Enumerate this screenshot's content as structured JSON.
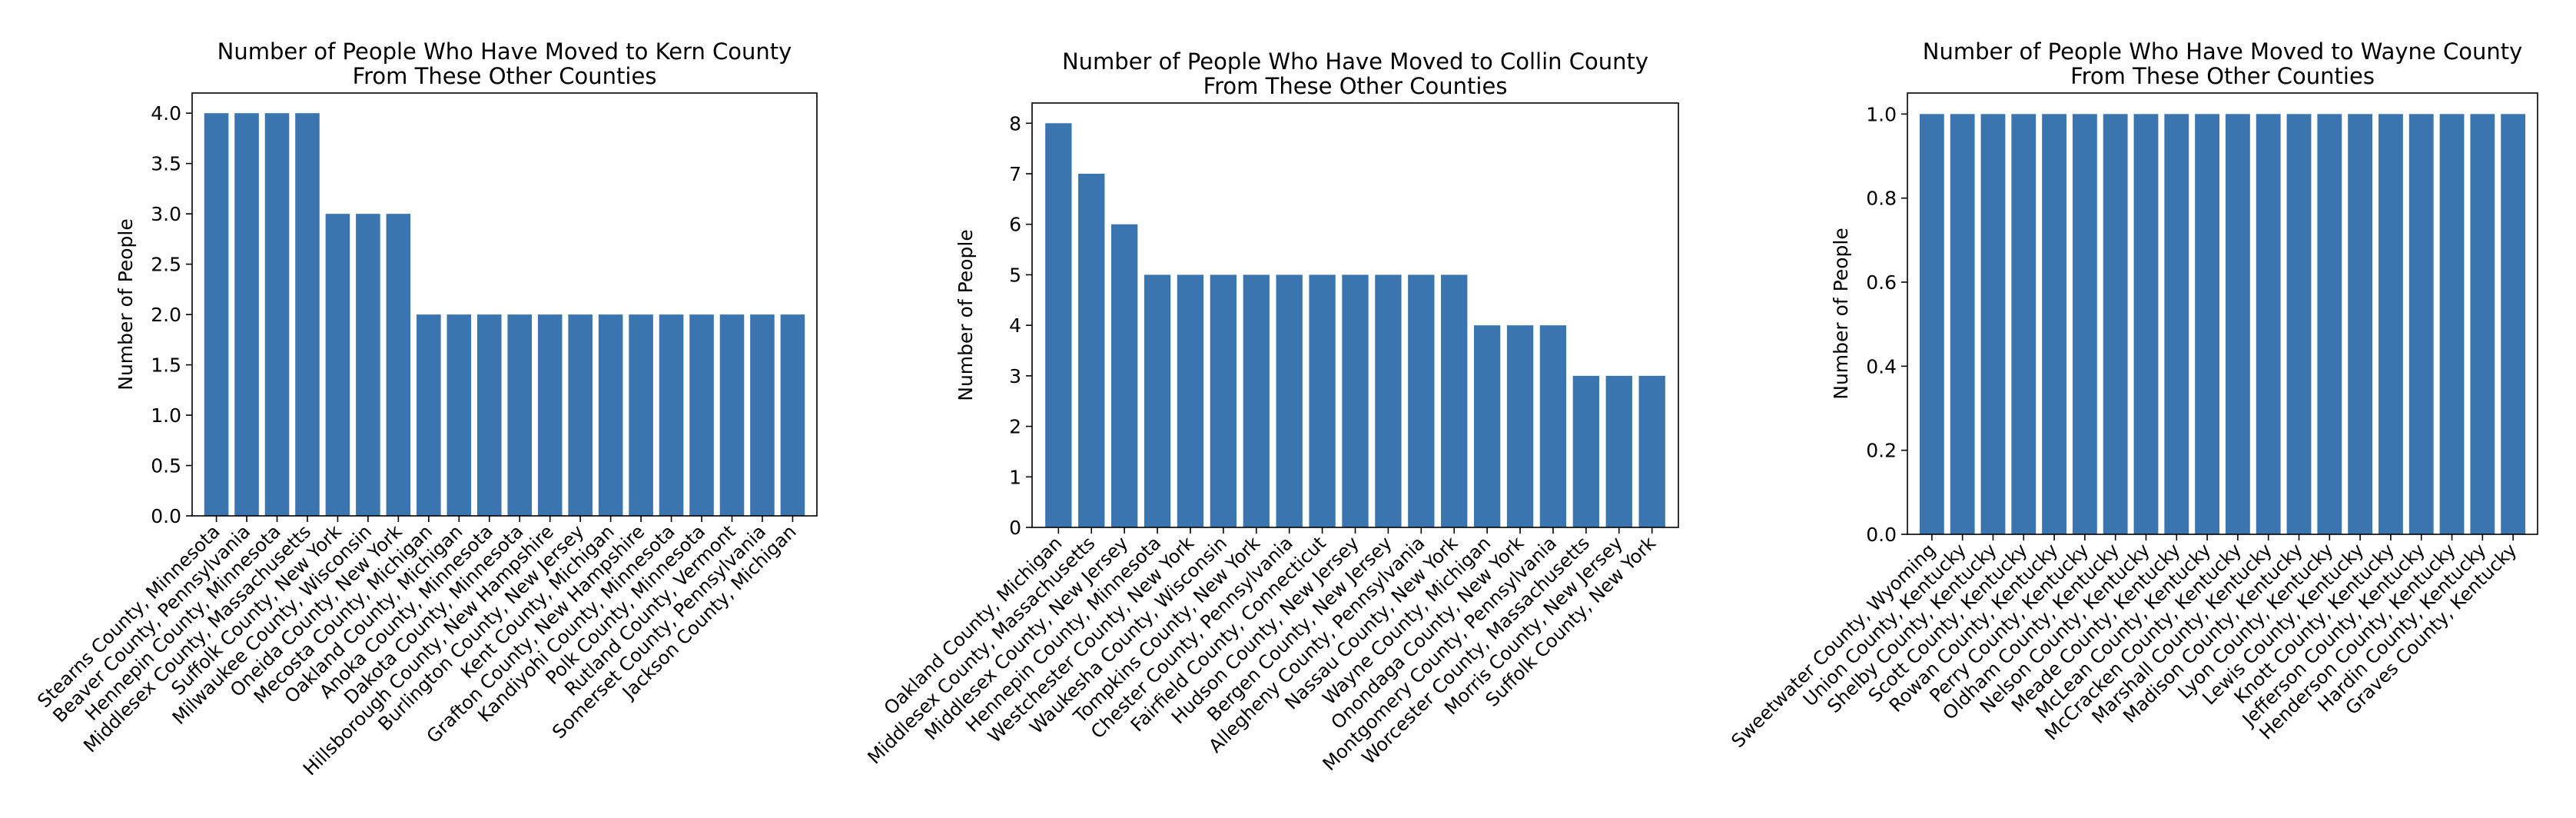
{
  "chart_data": [
    {
      "type": "bar",
      "title": "Number of People Who Have Moved to Kern County\nFrom These Other Counties",
      "xlabel": "",
      "ylabel": "Number of People",
      "ylim": [
        0,
        4.2
      ],
      "yticks": [
        "0.0",
        "0.5",
        "1.0",
        "1.5",
        "2.0",
        "2.5",
        "3.0",
        "3.5",
        "4.0"
      ],
      "grid": false,
      "bar_color": "#3a75b0",
      "categories": [
        "Stearns County, Minnesota",
        "Beaver County, Pennsylvania",
        "Hennepin County, Minnesota",
        "Middlesex County, Massachusetts",
        "Suffolk County, New York",
        "Milwaukee County, Wisconsin",
        "Oneida County, New York",
        "Mecosta County, Michigan",
        "Oakland County, Michigan",
        "Anoka County, Minnesota",
        "Dakota County, Minnesota",
        "Hillsborough County, New Hampshire",
        "Burlington County, New Jersey",
        "Kent County, Michigan",
        "Grafton County, New Hampshire",
        "Kandiyohi County, Minnesota",
        "Polk County, Minnesota",
        "Rutland County, Vermont",
        "Somerset County, Pennsylvania",
        "Jackson County, Michigan"
      ],
      "values": [
        4,
        4,
        4,
        4,
        3,
        3,
        3,
        2,
        2,
        2,
        2,
        2,
        2,
        2,
        2,
        2,
        2,
        2,
        2,
        2
      ]
    },
    {
      "type": "bar",
      "title": "Number of People Who Have Moved to Collin County\nFrom These Other Counties",
      "xlabel": "",
      "ylabel": "Number of People",
      "ylim": [
        0,
        8.4
      ],
      "yticks": [
        "0",
        "1",
        "2",
        "3",
        "4",
        "5",
        "6",
        "7",
        "8"
      ],
      "grid": false,
      "bar_color": "#3a75b0",
      "categories": [
        "Oakland County, Michigan",
        "Middlesex County, Massachusetts",
        "Middlesex County, New Jersey",
        "Hennepin County, Minnesota",
        "Westchester County, New York",
        "Waukesha County, Wisconsin",
        "Tompkins County, New York",
        "Chester County, Pennsylvania",
        "Fairfield County, Connecticut",
        "Hudson County, New Jersey",
        "Bergen County, New Jersey",
        "Allegheny County, Pennsylvania",
        "Nassau County, New York",
        "Wayne County, Michigan",
        "Onondaga County, New York",
        "Montgomery County, Pennsylvania",
        "Worcester County, Massachusetts",
        "Morris County, New Jersey",
        "Suffolk County, New York"
      ],
      "values": [
        8,
        7,
        6,
        5,
        5,
        5,
        5,
        5,
        5,
        5,
        5,
        5,
        5,
        4,
        4,
        4,
        3,
        3,
        3
      ]
    },
    {
      "type": "bar",
      "title": "Number of People Who Have Moved to Wayne County\nFrom These Other Counties",
      "xlabel": "",
      "ylabel": "Number of People",
      "ylim": [
        0,
        1.05
      ],
      "yticks": [
        "0.0",
        "0.2",
        "0.4",
        "0.6",
        "0.8",
        "1.0"
      ],
      "grid": false,
      "bar_color": "#3a75b0",
      "categories": [
        "Sweetwater County, Wyoming",
        "Union County, Kentucky",
        "Shelby County, Kentucky",
        "Scott County, Kentucky",
        "Rowan County, Kentucky",
        "Perry County, Kentucky",
        "Oldham County, Kentucky",
        "Nelson County, Kentucky",
        "Meade County, Kentucky",
        "McLean County, Kentucky",
        "McCracken County, Kentucky",
        "Marshall County, Kentucky",
        "Madison County, Kentucky",
        "Lyon County, Kentucky",
        "Lewis County, Kentucky",
        "Knott County, Kentucky",
        "Jefferson County, Kentucky",
        "Henderson County, Kentucky",
        "Hardin County, Kentucky",
        "Graves County, Kentucky"
      ],
      "values": [
        1,
        1,
        1,
        1,
        1,
        1,
        1,
        1,
        1,
        1,
        1,
        1,
        1,
        1,
        1,
        1,
        1,
        1,
        1,
        1
      ]
    }
  ]
}
